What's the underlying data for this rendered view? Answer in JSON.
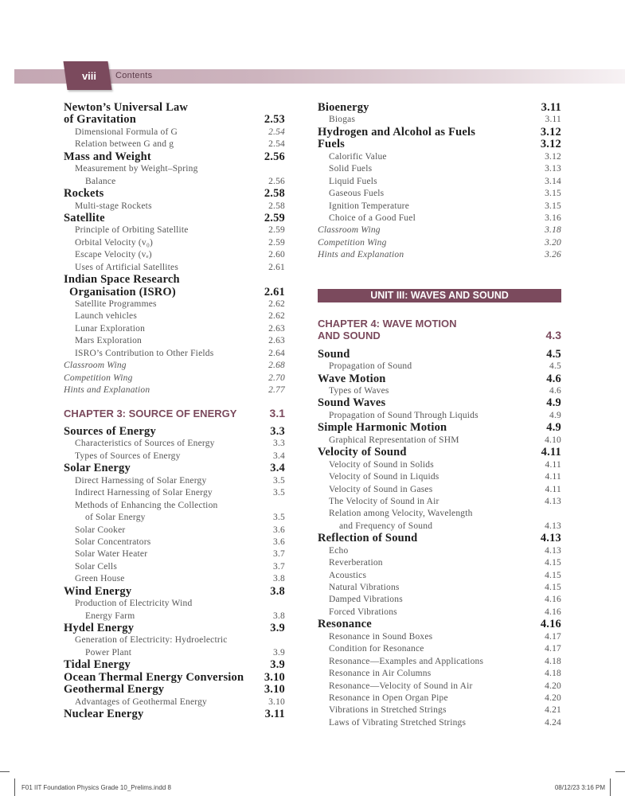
{
  "header": {
    "page_number": "viii",
    "title": "Contents",
    "accent_color": "#7b4a5d"
  },
  "columns": [
    {
      "entries": [
        {
          "type": "main",
          "text": "Newton’s Universal Law",
          "page": ""
        },
        {
          "type": "main",
          "text": "of Gravitation",
          "page": "2.53"
        },
        {
          "type": "sub",
          "text": "Dimensional Formula of G",
          "page": "2.54",
          "italic_page": true
        },
        {
          "type": "sub",
          "text": "Relation between G and g",
          "page": "2.54"
        },
        {
          "type": "main",
          "text": "Mass and Weight",
          "page": "2.56"
        },
        {
          "type": "sub",
          "text": "Measurement by Weight–Spring",
          "page": ""
        },
        {
          "type": "sub-wrap",
          "text": "Balance",
          "page": "2.56"
        },
        {
          "type": "main",
          "text": "Rockets",
          "page": "2.58"
        },
        {
          "type": "sub",
          "text": "Multi-stage Rockets",
          "page": "2.58"
        },
        {
          "type": "main",
          "text": "Satellite",
          "page": "2.59"
        },
        {
          "type": "sub",
          "text": "Principle of Orbiting Satellite",
          "page": "2.59"
        },
        {
          "type": "sub",
          "text": "Orbital Velocity (v₀)",
          "page": "2.59"
        },
        {
          "type": "sub",
          "text": "Escape Velocity (vₑ)",
          "page": "2.60"
        },
        {
          "type": "sub",
          "text": "Uses of Artificial Satellites",
          "page": "2.61"
        },
        {
          "type": "main",
          "text": "Indian Space Research",
          "page": ""
        },
        {
          "type": "main-cont",
          "text": "Organisation (ISRO)",
          "page": "2.61"
        },
        {
          "type": "sub",
          "text": "Satellite Programmes",
          "page": "2.62"
        },
        {
          "type": "sub",
          "text": "Launch vehicles",
          "page": "2.62"
        },
        {
          "type": "sub",
          "text": "Lunar Exploration",
          "page": "2.63"
        },
        {
          "type": "sub",
          "text": "Mars Exploration",
          "page": "2.63"
        },
        {
          "type": "sub",
          "text": "ISRO’s Contribution to Other Fields",
          "page": "2.64"
        },
        {
          "type": "ital",
          "text": "Classroom Wing",
          "page": "2.68"
        },
        {
          "type": "ital",
          "text": "Competition Wing",
          "page": "2.70"
        },
        {
          "type": "ital",
          "text": "Hints and Explanation",
          "page": "2.77"
        },
        {
          "type": "chapter",
          "text": "CHAPTER 3: SOURCE OF ENERGY",
          "page": "3.1"
        },
        {
          "type": "main",
          "text": "Sources of Energy",
          "page": "3.3"
        },
        {
          "type": "sub",
          "text": "Characteristics of Sources of Energy",
          "page": "3.3"
        },
        {
          "type": "sub",
          "text": "Types of Sources of Energy",
          "page": "3.4"
        },
        {
          "type": "main",
          "text": "Solar Energy",
          "page": "3.4"
        },
        {
          "type": "sub",
          "text": "Direct Harnessing of Solar Energy",
          "page": "3.5"
        },
        {
          "type": "sub",
          "text": "Indirect Harnessing of Solar Energy",
          "page": "3.5"
        },
        {
          "type": "sub",
          "text": "Methods of Enhancing the Collection",
          "page": ""
        },
        {
          "type": "sub-wrap",
          "text": "of Solar Energy",
          "page": "3.5"
        },
        {
          "type": "sub",
          "text": "Solar Cooker",
          "page": "3.6"
        },
        {
          "type": "sub",
          "text": "Solar Concentrators",
          "page": "3.6"
        },
        {
          "type": "sub",
          "text": "Solar Water Heater",
          "page": "3.7"
        },
        {
          "type": "sub",
          "text": "Solar Cells",
          "page": "3.7"
        },
        {
          "type": "sub",
          "text": "Green House",
          "page": "3.8"
        },
        {
          "type": "main",
          "text": "Wind Energy",
          "page": "3.8"
        },
        {
          "type": "sub",
          "text": "Production of Electricity Wind",
          "page": ""
        },
        {
          "type": "sub-wrap",
          "text": "Energy Farm",
          "page": "3.8"
        },
        {
          "type": "main",
          "text": "Hydel Energy",
          "page": "3.9"
        },
        {
          "type": "sub",
          "text": "Generation of Electricity: Hydroelectric",
          "page": ""
        },
        {
          "type": "sub-wrap",
          "text": "Power Plant",
          "page": "3.9"
        },
        {
          "type": "main",
          "text": "Tidal Energy",
          "page": "3.9"
        },
        {
          "type": "main",
          "text": "Ocean Thermal Energy Conversion",
          "page": "3.10"
        },
        {
          "type": "main",
          "text": "Geothermal Energy",
          "page": "3.10"
        },
        {
          "type": "sub",
          "text": "Advantages of Geothermal Energy",
          "page": "3.10"
        },
        {
          "type": "main",
          "text": "Nuclear Energy",
          "page": "3.11"
        }
      ]
    },
    {
      "entries": [
        {
          "type": "main",
          "text": "Bioenergy",
          "page": "3.11"
        },
        {
          "type": "sub",
          "text": "Biogas",
          "page": "3.11"
        },
        {
          "type": "main",
          "text": "Hydrogen and Alcohol as Fuels",
          "page": "3.12"
        },
        {
          "type": "main",
          "text": "Fuels",
          "page": "3.12"
        },
        {
          "type": "sub",
          "text": "Calorific Value",
          "page": "3.12"
        },
        {
          "type": "sub",
          "text": "Solid Fuels",
          "page": "3.13"
        },
        {
          "type": "sub",
          "text": "Liquid Fuels",
          "page": "3.14"
        },
        {
          "type": "sub",
          "text": "Gaseous Fuels",
          "page": "3.15"
        },
        {
          "type": "sub",
          "text": "Ignition Temperature",
          "page": "3.15"
        },
        {
          "type": "sub",
          "text": "Choice of a Good Fuel",
          "page": "3.16"
        },
        {
          "type": "ital",
          "text": "Classroom Wing",
          "page": "3.18"
        },
        {
          "type": "ital",
          "text": "Competition Wing",
          "page": "3.20"
        },
        {
          "type": "ital",
          "text": "Hints and Explanation",
          "page": "3.26"
        },
        {
          "type": "unit",
          "text": "UNIT III: WAVES AND SOUND",
          "page": ""
        },
        {
          "type": "chapter-2",
          "text": "CHAPTER 4: WAVE MOTION",
          "text2": "AND SOUND",
          "page": "4.3"
        },
        {
          "type": "main",
          "text": "Sound",
          "page": "4.5"
        },
        {
          "type": "sub",
          "text": "Propagation of Sound",
          "page": "4.5"
        },
        {
          "type": "main",
          "text": "Wave Motion",
          "page": "4.6"
        },
        {
          "type": "sub",
          "text": "Types of Waves",
          "page": "4.6"
        },
        {
          "type": "main",
          "text": "Sound Waves",
          "page": "4.9"
        },
        {
          "type": "sub",
          "text": "Propagation of Sound Through Liquids",
          "page": "4.9"
        },
        {
          "type": "main",
          "text": "Simple Harmonic Motion",
          "page": "4.9"
        },
        {
          "type": "sub",
          "text": "Graphical Representation of SHM",
          "page": "4.10"
        },
        {
          "type": "main",
          "text": "Velocity of Sound",
          "page": "4.11"
        },
        {
          "type": "sub",
          "text": "Velocity of Sound in Solids",
          "page": "4.11"
        },
        {
          "type": "sub",
          "text": "Velocity of Sound in Liquids",
          "page": "4.11"
        },
        {
          "type": "sub",
          "text": "Velocity of Sound in Gases",
          "page": "4.11"
        },
        {
          "type": "sub",
          "text": "The Velocity of Sound in Air",
          "page": "4.13"
        },
        {
          "type": "sub",
          "text": "Relation among Velocity, Wavelength",
          "page": ""
        },
        {
          "type": "sub-wrap",
          "text": "and Frequency of Sound",
          "page": "4.13"
        },
        {
          "type": "main",
          "text": "Reflection of Sound",
          "page": "4.13"
        },
        {
          "type": "sub",
          "text": "Echo",
          "page": "4.13"
        },
        {
          "type": "sub",
          "text": "Reverberation",
          "page": "4.15"
        },
        {
          "type": "sub",
          "text": "Acoustics",
          "page": "4.15"
        },
        {
          "type": "sub",
          "text": "Natural Vibrations",
          "page": "4.15"
        },
        {
          "type": "sub",
          "text": "Damped Vibrations",
          "page": "4.16"
        },
        {
          "type": "sub",
          "text": "Forced Vibrations",
          "page": "4.16"
        },
        {
          "type": "main",
          "text": "Resonance",
          "page": "4.16"
        },
        {
          "type": "sub",
          "text": "Resonance in Sound Boxes",
          "page": "4.17"
        },
        {
          "type": "sub",
          "text": "Condition for Resonance",
          "page": "4.17"
        },
        {
          "type": "sub",
          "text": "Resonance—Examples and Applications",
          "page": "4.18"
        },
        {
          "type": "sub",
          "text": "Resonance in Air Columns",
          "page": "4.18"
        },
        {
          "type": "sub",
          "text": "Resonance—Velocity of Sound in Air",
          "page": "4.20"
        },
        {
          "type": "sub",
          "text": "Resonance in Open Organ Pipe",
          "page": "4.20"
        },
        {
          "type": "sub",
          "text": "Vibrations in Stretched Strings",
          "page": "4.21"
        },
        {
          "type": "sub",
          "text": "Laws of Vibrating Stretched Strings",
          "page": "4.24"
        }
      ]
    }
  ],
  "footer": {
    "file": "F01 IIT Foundation Physics Grade 10_Prelims.indd   8",
    "timestamp": "08/12/23   3:16 PM"
  }
}
